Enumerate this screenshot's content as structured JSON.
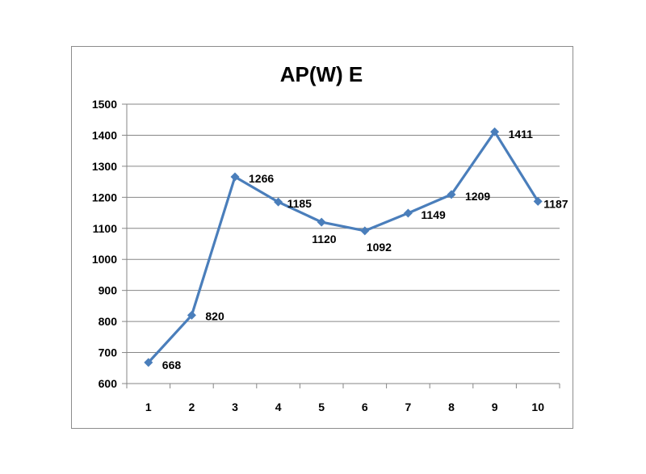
{
  "chart_data": {
    "type": "line",
    "title": "AP(W) E",
    "categories": [
      "1",
      "2",
      "3",
      "4",
      "5",
      "6",
      "7",
      "8",
      "9",
      "10"
    ],
    "series": [
      {
        "values": [
          668,
          820,
          1266,
          1185,
          1120,
          1092,
          1149,
          1209,
          1411,
          1187
        ]
      }
    ],
    "data_labels": [
      "668",
      "820",
      "1266",
      "1185",
      "1120",
      "1092",
      "1149",
      "1209",
      "1411",
      "1187"
    ],
    "ylim": [
      600,
      1500
    ],
    "yticks": [
      "600",
      "700",
      "800",
      "900",
      "1000",
      "1100",
      "1200",
      "1300",
      "1400",
      "1500"
    ],
    "grid": true,
    "legend": "none",
    "colors": {
      "series": "#4a7ebb",
      "marker": "#4a7ebb",
      "grid": "#868686",
      "axis": "#868686"
    }
  }
}
